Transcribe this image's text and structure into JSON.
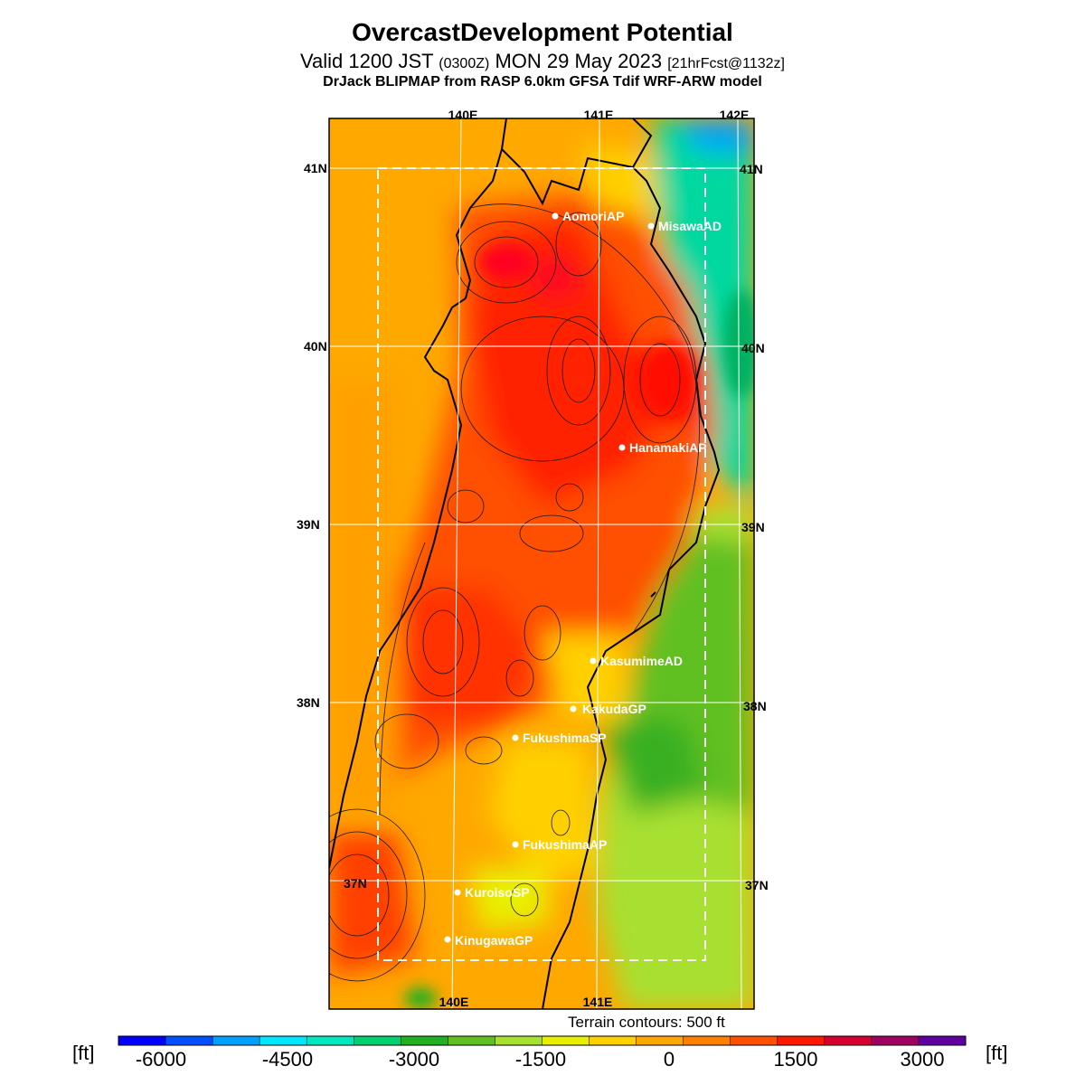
{
  "header": {
    "title": "OvercastDevelopment Potential",
    "subtitle_main": "Valid 1200 JST",
    "subtitle_zulu": "(0300Z)",
    "subtitle_date": "MON 29 May 2023",
    "subtitle_fcst": "[21hrFcst@1132z]",
    "model_line": "DrJack BLIPMAP from RASP 6.0km GFSA Tdif WRF-ARW model"
  },
  "map": {
    "lon_labels": [
      "140E",
      "141E",
      "142E"
    ],
    "lat_labels": [
      "41N",
      "40N",
      "39N",
      "38N",
      "37N"
    ],
    "stations": [
      {
        "name": "AomoriAP"
      },
      {
        "name": "MisawaAD"
      },
      {
        "name": "HanamakiAP"
      },
      {
        "name": "KasumimeAD"
      },
      {
        "name": "KakudaGP"
      },
      {
        "name": "FukushimaSP"
      },
      {
        "name": "FukushimaAP"
      },
      {
        "name": "KuroisoSP"
      },
      {
        "name": "KinugawaGP"
      }
    ]
  },
  "terrain_note": "Terrain contours: 500 ft",
  "colorbar": {
    "unit_left": "[ft]",
    "unit_right": "[ft]",
    "ticks": [
      "-6000",
      "-4500",
      "-3000",
      "-1500",
      "0",
      "1500",
      "3000"
    ],
    "colors": [
      "#0000ff",
      "#0050ff",
      "#00a0ff",
      "#00e8ff",
      "#00e8c0",
      "#00d070",
      "#20b020",
      "#60c020",
      "#a8e030",
      "#e8f000",
      "#ffd000",
      "#ffa800",
      "#ff8000",
      "#ff5000",
      "#ff1800",
      "#d80030",
      "#a00060",
      "#6000a0"
    ]
  }
}
